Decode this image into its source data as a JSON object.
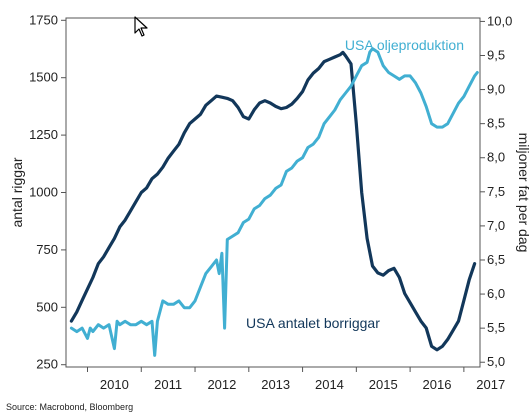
{
  "chart_data": {
    "type": "line",
    "x_tick_labels": [
      "2010",
      "2011",
      "2012",
      "2013",
      "2014",
      "2015",
      "2016",
      "2017"
    ],
    "y_left": {
      "label": "antal riggar",
      "ticks": [
        250,
        500,
        750,
        1000,
        1250,
        1500,
        1750
      ],
      "tick_labels": [
        "250",
        "500",
        "750",
        "1000",
        "1250",
        "1500",
        "1750"
      ],
      "range": [
        240,
        1760
      ]
    },
    "y_right": {
      "label": "miljoner fat per dag",
      "ticks": [
        5.0,
        5.5,
        6.0,
        6.5,
        7.0,
        7.5,
        8.0,
        8.5,
        9.0,
        9.5,
        10.0
      ],
      "tick_labels": [
        "5,0",
        "5,5",
        "6,0",
        "6,5",
        "7,0",
        "7,5",
        "8,0",
        "8,5",
        "9,0",
        "9,5",
        "10,0"
      ],
      "range": [
        4.93,
        10.05
      ]
    },
    "x_range": [
      2009.6,
      2017.3
    ],
    "grid": false,
    "series": [
      {
        "name": "USA antalet borriggar",
        "axis": "left",
        "color": "#12375a",
        "points": [
          [
            2009.7,
            440
          ],
          [
            2009.8,
            480
          ],
          [
            2009.9,
            530
          ],
          [
            2010.0,
            580
          ],
          [
            2010.1,
            630
          ],
          [
            2010.2,
            690
          ],
          [
            2010.3,
            720
          ],
          [
            2010.4,
            760
          ],
          [
            2010.5,
            800
          ],
          [
            2010.6,
            850
          ],
          [
            2010.7,
            880
          ],
          [
            2010.8,
            920
          ],
          [
            2010.9,
            960
          ],
          [
            2011.0,
            1000
          ],
          [
            2011.1,
            1020
          ],
          [
            2011.2,
            1060
          ],
          [
            2011.3,
            1080
          ],
          [
            2011.4,
            1110
          ],
          [
            2011.5,
            1150
          ],
          [
            2011.6,
            1180
          ],
          [
            2011.7,
            1210
          ],
          [
            2011.8,
            1260
          ],
          [
            2011.9,
            1300
          ],
          [
            2012.0,
            1320
          ],
          [
            2012.1,
            1340
          ],
          [
            2012.2,
            1380
          ],
          [
            2012.3,
            1400
          ],
          [
            2012.4,
            1420
          ],
          [
            2012.5,
            1415
          ],
          [
            2012.6,
            1410
          ],
          [
            2012.7,
            1400
          ],
          [
            2012.8,
            1370
          ],
          [
            2012.9,
            1330
          ],
          [
            2013.0,
            1320
          ],
          [
            2013.1,
            1360
          ],
          [
            2013.2,
            1390
          ],
          [
            2013.3,
            1400
          ],
          [
            2013.4,
            1390
          ],
          [
            2013.5,
            1375
          ],
          [
            2013.6,
            1365
          ],
          [
            2013.7,
            1370
          ],
          [
            2013.8,
            1385
          ],
          [
            2013.9,
            1410
          ],
          [
            2014.0,
            1440
          ],
          [
            2014.1,
            1490
          ],
          [
            2014.2,
            1520
          ],
          [
            2014.3,
            1540
          ],
          [
            2014.4,
            1570
          ],
          [
            2014.5,
            1580
          ],
          [
            2014.6,
            1590
          ],
          [
            2014.7,
            1600
          ],
          [
            2014.75,
            1610
          ],
          [
            2014.8,
            1595
          ],
          [
            2014.9,
            1560
          ],
          [
            2015.0,
            1300
          ],
          [
            2015.1,
            1000
          ],
          [
            2015.2,
            800
          ],
          [
            2015.3,
            680
          ],
          [
            2015.4,
            650
          ],
          [
            2015.5,
            640
          ],
          [
            2015.6,
            660
          ],
          [
            2015.7,
            670
          ],
          [
            2015.8,
            630
          ],
          [
            2015.9,
            560
          ],
          [
            2016.0,
            520
          ],
          [
            2016.1,
            480
          ],
          [
            2016.2,
            440
          ],
          [
            2016.3,
            410
          ],
          [
            2016.4,
            330
          ],
          [
            2016.5,
            315
          ],
          [
            2016.6,
            330
          ],
          [
            2016.7,
            360
          ],
          [
            2016.8,
            400
          ],
          [
            2016.9,
            440
          ],
          [
            2017.0,
            530
          ],
          [
            2017.1,
            620
          ],
          [
            2017.2,
            690
          ]
        ]
      },
      {
        "name": "USA oljeproduktion",
        "axis": "right",
        "color": "#41afd2",
        "points": [
          [
            2009.7,
            5.5
          ],
          [
            2009.8,
            5.45
          ],
          [
            2009.9,
            5.5
          ],
          [
            2010.0,
            5.35
          ],
          [
            2010.05,
            5.5
          ],
          [
            2010.1,
            5.45
          ],
          [
            2010.2,
            5.55
          ],
          [
            2010.3,
            5.5
          ],
          [
            2010.4,
            5.55
          ],
          [
            2010.5,
            5.2
          ],
          [
            2010.55,
            5.6
          ],
          [
            2010.6,
            5.55
          ],
          [
            2010.7,
            5.6
          ],
          [
            2010.8,
            5.55
          ],
          [
            2010.9,
            5.55
          ],
          [
            2011.0,
            5.6
          ],
          [
            2011.1,
            5.55
          ],
          [
            2011.2,
            5.6
          ],
          [
            2011.25,
            5.1
          ],
          [
            2011.3,
            5.6
          ],
          [
            2011.4,
            5.9
          ],
          [
            2011.5,
            5.85
          ],
          [
            2011.6,
            5.85
          ],
          [
            2011.7,
            5.9
          ],
          [
            2011.8,
            5.8
          ],
          [
            2011.9,
            5.8
          ],
          [
            2012.0,
            5.9
          ],
          [
            2012.1,
            6.1
          ],
          [
            2012.2,
            6.3
          ],
          [
            2012.3,
            6.4
          ],
          [
            2012.4,
            6.5
          ],
          [
            2012.45,
            6.3
          ],
          [
            2012.5,
            6.6
          ],
          [
            2012.55,
            5.5
          ],
          [
            2012.6,
            6.8
          ],
          [
            2012.7,
            6.85
          ],
          [
            2012.8,
            6.9
          ],
          [
            2012.9,
            7.05
          ],
          [
            2013.0,
            7.1
          ],
          [
            2013.1,
            7.25
          ],
          [
            2013.2,
            7.3
          ],
          [
            2013.3,
            7.4
          ],
          [
            2013.4,
            7.45
          ],
          [
            2013.5,
            7.55
          ],
          [
            2013.6,
            7.6
          ],
          [
            2013.7,
            7.8
          ],
          [
            2013.8,
            7.85
          ],
          [
            2013.9,
            7.95
          ],
          [
            2014.0,
            8.0
          ],
          [
            2014.1,
            8.15
          ],
          [
            2014.2,
            8.2
          ],
          [
            2014.3,
            8.3
          ],
          [
            2014.4,
            8.5
          ],
          [
            2014.5,
            8.6
          ],
          [
            2014.6,
            8.7
          ],
          [
            2014.7,
            8.85
          ],
          [
            2014.8,
            8.95
          ],
          [
            2014.9,
            9.05
          ],
          [
            2015.0,
            9.2
          ],
          [
            2015.1,
            9.35
          ],
          [
            2015.2,
            9.4
          ],
          [
            2015.25,
            9.55
          ],
          [
            2015.3,
            9.6
          ],
          [
            2015.4,
            9.55
          ],
          [
            2015.5,
            9.35
          ],
          [
            2015.6,
            9.25
          ],
          [
            2015.7,
            9.2
          ],
          [
            2015.8,
            9.15
          ],
          [
            2015.9,
            9.2
          ],
          [
            2016.0,
            9.2
          ],
          [
            2016.1,
            9.1
          ],
          [
            2016.2,
            8.95
          ],
          [
            2016.3,
            8.75
          ],
          [
            2016.4,
            8.5
          ],
          [
            2016.5,
            8.45
          ],
          [
            2016.6,
            8.45
          ],
          [
            2016.7,
            8.5
          ],
          [
            2016.8,
            8.65
          ],
          [
            2016.9,
            8.8
          ],
          [
            2017.0,
            8.9
          ],
          [
            2017.1,
            9.05
          ],
          [
            2017.2,
            9.2
          ],
          [
            2017.25,
            9.25
          ]
        ]
      }
    ]
  },
  "source": "Source: Macrobond, Bloomberg"
}
